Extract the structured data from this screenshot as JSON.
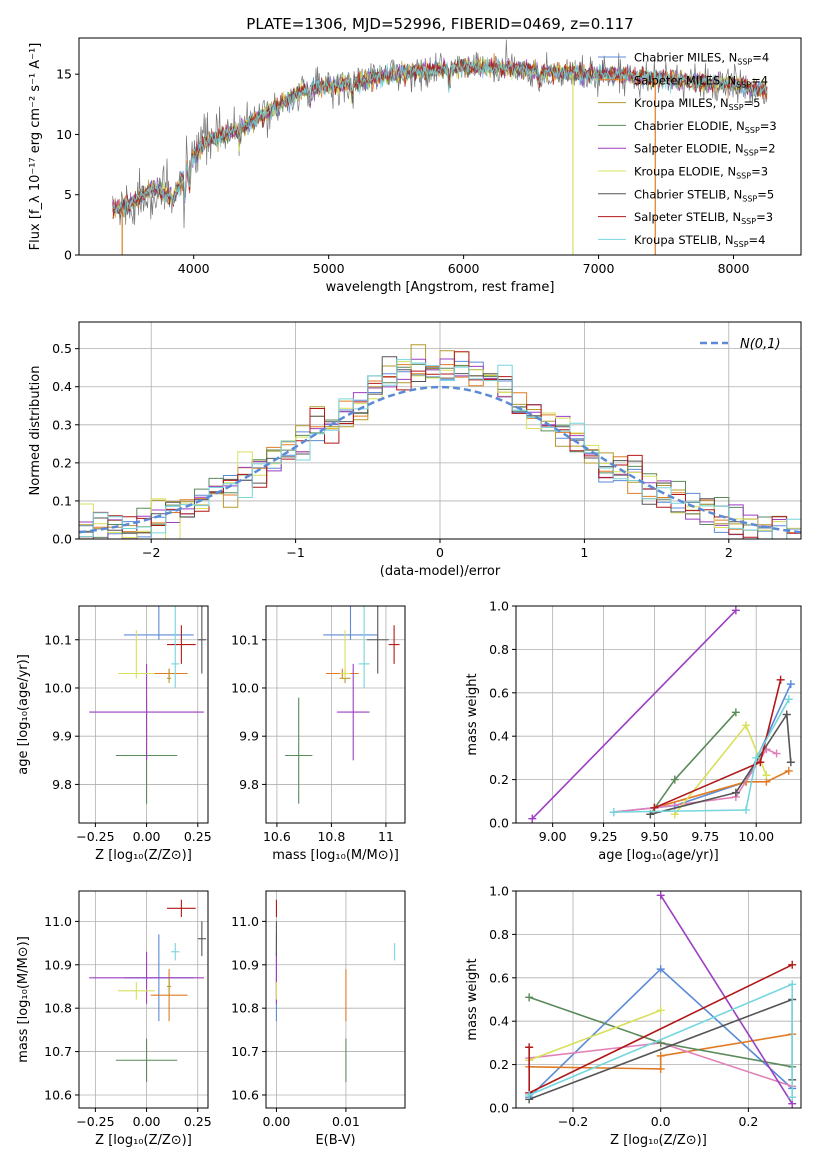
{
  "figure_title": "PLATE=1306, MJD=52996, FIBERID=0469, z=0.117",
  "colors": [
    "#5b8bd6",
    "#e07b24",
    "#b59a2d",
    "#5a8a5a",
    "#9d3fc1",
    "#d8e05c",
    "#555555",
    "#b21818",
    "#76d6de"
  ],
  "chart_data": [
    {
      "id": "spectrum",
      "type": "line",
      "xlabel": "wavelength [Angstrom, rest frame]",
      "ylabel": "Flux [f_λ 10⁻¹⁷ erg cm⁻² s⁻¹ A⁻¹]",
      "xlim": [
        3150,
        8500
      ],
      "ylim": [
        0,
        18
      ],
      "xticks": [
        4000,
        5000,
        6000,
        7000,
        8000
      ],
      "yticks": [
        0,
        5,
        10,
        15
      ],
      "grid": false,
      "legend_position": "right",
      "legend": [
        "Chabrier MILES, N_SSP=4",
        "Salpeter MILES, N_SSP=4",
        "Kroupa MILES, N_SSP=5",
        "Chabrier ELODIE, N_SSP=3",
        "Salpeter ELODIE, N_SSP=2",
        "Kroupa ELODIE, N_SSP=3",
        "Chabrier STELIB, N_SSP=5",
        "Salpeter STELIB, N_SSP=3",
        "Kroupa STELIB, N_SSP=4"
      ],
      "data_x_range": [
        3400,
        8250
      ],
      "continuum": [
        [
          3400,
          3.8
        ],
        [
          3500,
          4.0
        ],
        [
          3700,
          5.6
        ],
        [
          3850,
          4.6
        ],
        [
          3950,
          7.5
        ],
        [
          4100,
          9.5
        ],
        [
          4300,
          10.3
        ],
        [
          4500,
          11.5
        ],
        [
          4800,
          13.6
        ],
        [
          5000,
          14.0
        ],
        [
          5200,
          14.4
        ],
        [
          5500,
          15.0
        ],
        [
          5800,
          15.4
        ],
        [
          6000,
          15.6
        ],
        [
          6300,
          15.5
        ],
        [
          6600,
          15.2
        ],
        [
          6900,
          15.0
        ],
        [
          7200,
          14.9
        ],
        [
          7500,
          14.6
        ],
        [
          7800,
          14.3
        ],
        [
          8000,
          14.1
        ],
        [
          8250,
          13.6
        ]
      ],
      "dips": [
        [
          3934,
          -2.5
        ],
        [
          3968,
          -2.8
        ],
        [
          4340,
          -1.2
        ],
        [
          4861,
          -1.4
        ],
        [
          5175,
          -1.5
        ],
        [
          5893,
          -1.7
        ],
        [
          6563,
          -1.2
        ]
      ],
      "drop_lines": [
        [
          3470,
          "#e07b24"
        ],
        [
          6810,
          "#d8e05c"
        ],
        [
          7420,
          "#e07b24"
        ]
      ]
    },
    {
      "id": "residuals",
      "type": "histogram",
      "xlabel": "(data-model)/error",
      "ylabel": "Normed distribution",
      "xlim": [
        -2.5,
        2.5
      ],
      "ylim": [
        0,
        0.57
      ],
      "xticks": [
        -2,
        -1,
        0,
        1,
        2
      ],
      "yticks": [
        0.0,
        0.1,
        0.2,
        0.3,
        0.4,
        0.5
      ],
      "grid": true,
      "legend": [
        "N(0,1)"
      ],
      "bin_width": 0.1
    },
    {
      "id": "age_vs_Z",
      "type": "errorbar",
      "xlabel": "Z [log₁₀(Z/Z⊙)]",
      "ylabel": "age [log₁₀(age/yr)]",
      "xlim": [
        -0.33,
        0.3
      ],
      "ylim": [
        9.72,
        10.17
      ],
      "xticks": [
        -0.25,
        0.0,
        0.25
      ],
      "yticks": [
        9.8,
        9.9,
        10.0,
        10.1
      ],
      "grid": true,
      "points": [
        [
          0.06,
          0.17,
          10.11,
          0.01,
          0.07
        ],
        [
          0.11,
          0.09,
          10.03,
          0.01,
          0.01
        ],
        [
          0.11,
          0.01,
          10.02,
          0.01,
          0.02
        ],
        [
          0.0,
          0.15,
          9.86,
          0.1,
          0.12
        ],
        [
          0.0,
          0.28,
          9.95,
          0.1,
          0.1
        ],
        [
          -0.05,
          0.09,
          10.03,
          0.01,
          0.09
        ],
        [
          0.27,
          0.02,
          10.1,
          0.07,
          0.07
        ],
        [
          0.17,
          0.07,
          10.09,
          0.04,
          0.04
        ],
        [
          0.14,
          0.02,
          10.05,
          0.05,
          0.14
        ]
      ]
    },
    {
      "id": "age_vs_mass",
      "type": "errorbar",
      "xlabel": "mass [log₁₀(M/M⊙)]",
      "ylabel": "",
      "xlim": [
        10.56,
        11.07
      ],
      "ylim": [
        9.72,
        10.17
      ],
      "xticks": [
        10.6,
        10.8,
        11.0
      ],
      "yticks": [
        9.8,
        9.9,
        10.0,
        10.1
      ],
      "grid": true,
      "points": [
        [
          10.87,
          0.1,
          10.11,
          0.01,
          0.07
        ],
        [
          10.84,
          0.06,
          10.03,
          0.01,
          0.01
        ],
        [
          10.85,
          0.02,
          10.02,
          0.01,
          0.02
        ],
        [
          10.68,
          0.05,
          9.86,
          0.1,
          0.12
        ],
        [
          10.88,
          0.06,
          9.95,
          0.1,
          0.1
        ],
        [
          10.85,
          0.02,
          10.03,
          0.01,
          0.09
        ],
        [
          10.97,
          0.04,
          10.1,
          0.07,
          0.07
        ],
        [
          11.03,
          0.02,
          10.09,
          0.04,
          0.04
        ],
        [
          10.92,
          0.02,
          10.05,
          0.05,
          0.14
        ]
      ]
    },
    {
      "id": "weight_vs_age",
      "type": "line",
      "xlabel": "age [log₁₀(age/yr)]",
      "ylabel": "mass weight",
      "xlim": [
        8.82,
        10.22
      ],
      "ylim": [
        0,
        1.0
      ],
      "xticks": [
        9.0,
        9.25,
        9.5,
        9.75,
        10.0
      ],
      "yticks": [
        0.0,
        0.2,
        0.4,
        0.6,
        0.8,
        1.0
      ],
      "grid": true,
      "series": [
        [
          [
            9.3,
            0.05
          ],
          [
            9.6,
            0.08
          ],
          [
            9.95,
            0.19
          ],
          [
            10.17,
            0.64
          ]
        ],
        [
          [
            9.5,
            0.07
          ],
          [
            9.95,
            0.19
          ],
          [
            10.05,
            0.19
          ],
          [
            10.16,
            0.24
          ]
        ],
        [
          [
            9.3,
            0.05
          ],
          [
            9.5,
            0.07
          ],
          [
            9.9,
            0.12
          ],
          [
            10.05,
            0.34
          ],
          [
            10.1,
            0.32
          ]
        ],
        [
          [
            9.48,
            0.04
          ],
          [
            9.6,
            0.2
          ],
          [
            9.9,
            0.51
          ]
        ],
        [
          [
            8.9,
            0.02
          ],
          [
            9.9,
            0.98
          ]
        ],
        [
          [
            9.6,
            0.04
          ],
          [
            9.95,
            0.45
          ],
          [
            10.05,
            0.22
          ]
        ],
        [
          [
            9.48,
            0.04
          ],
          [
            9.9,
            0.14
          ],
          [
            10.15,
            0.5
          ],
          [
            10.17,
            0.28
          ]
        ],
        [
          [
            9.5,
            0.07
          ],
          [
            10.02,
            0.28
          ],
          [
            10.12,
            0.66
          ]
        ],
        [
          [
            9.3,
            0.05
          ],
          [
            9.95,
            0.06
          ],
          [
            10.0,
            0.3
          ],
          [
            10.16,
            0.57
          ]
        ]
      ]
    },
    {
      "id": "mass_vs_Z",
      "type": "errorbar",
      "xlabel": "Z [log₁₀(Z/Z⊙)]",
      "ylabel": "mass [log₁₀(M/M⊙)]",
      "xlim": [
        -0.33,
        0.3
      ],
      "ylim": [
        10.57,
        11.07
      ],
      "xticks": [
        -0.25,
        0.0,
        0.25
      ],
      "yticks": [
        10.6,
        10.7,
        10.8,
        10.9,
        11.0
      ],
      "grid": true,
      "points": [
        [
          0.06,
          0.17,
          10.87,
          0.1,
          0.1
        ],
        [
          0.11,
          0.09,
          10.83,
          0.06,
          0.06
        ],
        [
          0.11,
          0.01,
          10.85,
          0.02,
          0.02
        ],
        [
          0.0,
          0.15,
          10.68,
          0.05,
          0.05
        ],
        [
          0.0,
          0.28,
          10.87,
          0.06,
          0.06
        ],
        [
          -0.05,
          0.09,
          10.84,
          0.02,
          0.02
        ],
        [
          0.27,
          0.02,
          10.96,
          0.04,
          0.04
        ],
        [
          0.17,
          0.07,
          11.03,
          0.02,
          0.02
        ],
        [
          0.14,
          0.02,
          10.93,
          0.02,
          0.02
        ]
      ]
    },
    {
      "id": "mass_vs_ebv",
      "type": "errorbar",
      "xlabel": "E(B-V)",
      "ylabel": "",
      "xlim": [
        -0.0015,
        0.0185
      ],
      "ylim": [
        10.57,
        11.07
      ],
      "xticks": [
        0.0,
        0.01
      ],
      "yticks": [
        10.6,
        10.7,
        10.8,
        10.9,
        11.0
      ],
      "grid": true,
      "points": [
        [
          0.0,
          0.0,
          10.87,
          0.1,
          0.1
        ],
        [
          0.01,
          0.0,
          10.83,
          0.06,
          0.06
        ],
        [
          0.0,
          0.0,
          10.85,
          0.02,
          0.02
        ],
        [
          0.01,
          0.0,
          10.68,
          0.05,
          0.05
        ],
        [
          0.0,
          0.0,
          10.87,
          0.06,
          0.06
        ],
        [
          0.0,
          0.0,
          10.84,
          0.02,
          0.02
        ],
        [
          0.0,
          0.0,
          10.96,
          0.04,
          0.04
        ],
        [
          0.0,
          0.0,
          11.03,
          0.02,
          0.02
        ],
        [
          0.017,
          0.0,
          10.93,
          0.02,
          0.02
        ]
      ]
    },
    {
      "id": "weight_vs_Z",
      "type": "line",
      "xlabel": "Z [log₁₀(Z/Z⊙)]",
      "ylabel": "mass weight",
      "xlim": [
        -0.33,
        0.32
      ],
      "ylim": [
        0,
        1.0
      ],
      "xticks": [
        -0.2,
        0.0,
        0.2
      ],
      "yticks": [
        0.0,
        0.2,
        0.4,
        0.6,
        0.8,
        1.0
      ],
      "grid": true,
      "series": [
        [
          [
            -0.3,
            0.05
          ],
          [
            0.0,
            0.64
          ],
          [
            0.3,
            0.09
          ]
        ],
        [
          [
            -0.3,
            0.19
          ],
          [
            0.0,
            0.18
          ],
          [
            0.0,
            0.24
          ],
          [
            0.3,
            0.34
          ]
        ],
        [
          [
            -0.3,
            0.23
          ],
          [
            0.0,
            0.3
          ],
          [
            0.3,
            0.1
          ]
        ],
        [
          [
            -0.3,
            0.51
          ],
          [
            0.0,
            0.3
          ],
          [
            0.3,
            0.19
          ]
        ],
        [
          [
            0.0,
            0.98
          ],
          [
            0.3,
            0.02
          ]
        ],
        [
          [
            -0.3,
            0.22
          ],
          [
            0.0,
            0.45
          ]
        ],
        [
          [
            -0.3,
            0.04
          ],
          [
            0.3,
            0.5
          ],
          [
            0.3,
            0.13
          ]
        ],
        [
          [
            -0.3,
            0.28
          ],
          [
            -0.3,
            0.07
          ],
          [
            0.3,
            0.66
          ]
        ],
        [
          [
            -0.3,
            0.06
          ],
          [
            0.3,
            0.57
          ],
          [
            0.3,
            0.05
          ]
        ]
      ]
    }
  ]
}
